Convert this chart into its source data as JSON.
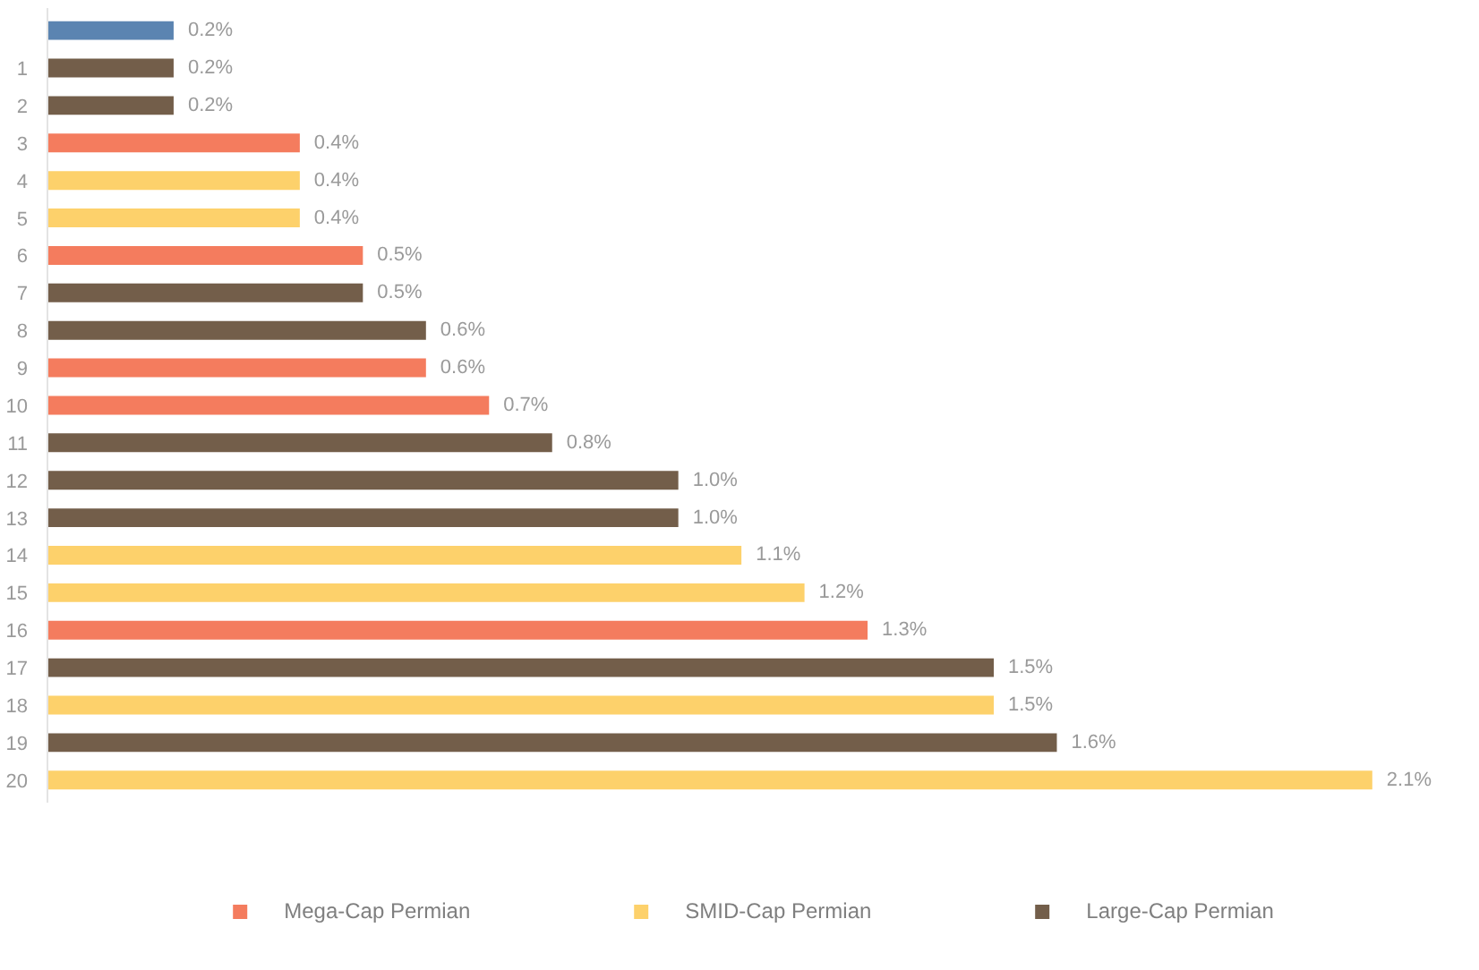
{
  "chart_data": {
    "type": "bar",
    "orientation": "horizontal",
    "stacked": true,
    "legend": "bottom",
    "tick_labels": "y",
    "categories": [
      null,
      "1",
      "2",
      "3",
      "4",
      "5",
      "6",
      "7",
      "8",
      "9",
      "10",
      "11",
      "12",
      "13",
      "14",
      "15",
      "16",
      "17",
      "18",
      "19",
      "20"
    ],
    "series": [
      {
        "color": "#5b84b1",
        "values": [
          0.2,
          null,
          null,
          null,
          null,
          null,
          null,
          null,
          null,
          null,
          null,
          null,
          null,
          null,
          null,
          null,
          null,
          null,
          null,
          null,
          null
        ],
        "value_labels": [
          "0.2%",
          null,
          null,
          null,
          null,
          null,
          null,
          null,
          null,
          null,
          null,
          null,
          null,
          null,
          null,
          null,
          null,
          null,
          null,
          null,
          null
        ]
      },
      {
        "name": "Mega-Cap Permian",
        "color": "#f47c5e",
        "values": [
          null,
          null,
          null,
          0.4,
          null,
          null,
          0.5,
          null,
          null,
          0.6,
          0.7,
          null,
          null,
          null,
          null,
          null,
          1.3,
          null,
          null,
          null,
          null
        ],
        "value_labels": [
          null,
          null,
          null,
          "0.4%",
          null,
          null,
          "0.5%",
          null,
          null,
          "0.6%",
          "0.7%",
          null,
          null,
          null,
          null,
          null,
          "1.3%",
          null,
          null,
          null,
          null
        ]
      },
      {
        "name": "SMID-Cap Permian",
        "color": "#fdd16b",
        "values": [
          null,
          null,
          null,
          null,
          0.4,
          0.4,
          null,
          null,
          null,
          null,
          null,
          null,
          null,
          null,
          1.1,
          1.2,
          null,
          null,
          1.5,
          null,
          2.1
        ],
        "value_labels": [
          null,
          null,
          null,
          null,
          "0.4%",
          "0.4%",
          null,
          null,
          null,
          null,
          null,
          null,
          null,
          null,
          "1.1%",
          "1.2%",
          null,
          null,
          "1.5%",
          null,
          "2.1%"
        ]
      },
      {
        "name": "Large-Cap Permian",
        "color": "#735e4a",
        "values": [
          null,
          0.2,
          0.2,
          null,
          null,
          null,
          null,
          0.5,
          0.6,
          null,
          null,
          0.8,
          1.0,
          1.0,
          null,
          null,
          null,
          1.5,
          null,
          1.6,
          null
        ],
        "value_labels": [
          null,
          "0.2%",
          "0.2%",
          null,
          null,
          null,
          null,
          "0.5%",
          "0.6%",
          null,
          null,
          "0.8%",
          "1.0%",
          "1.0%",
          null,
          null,
          null,
          "1.5%",
          null,
          "1.6%",
          null
        ]
      }
    ]
  }
}
